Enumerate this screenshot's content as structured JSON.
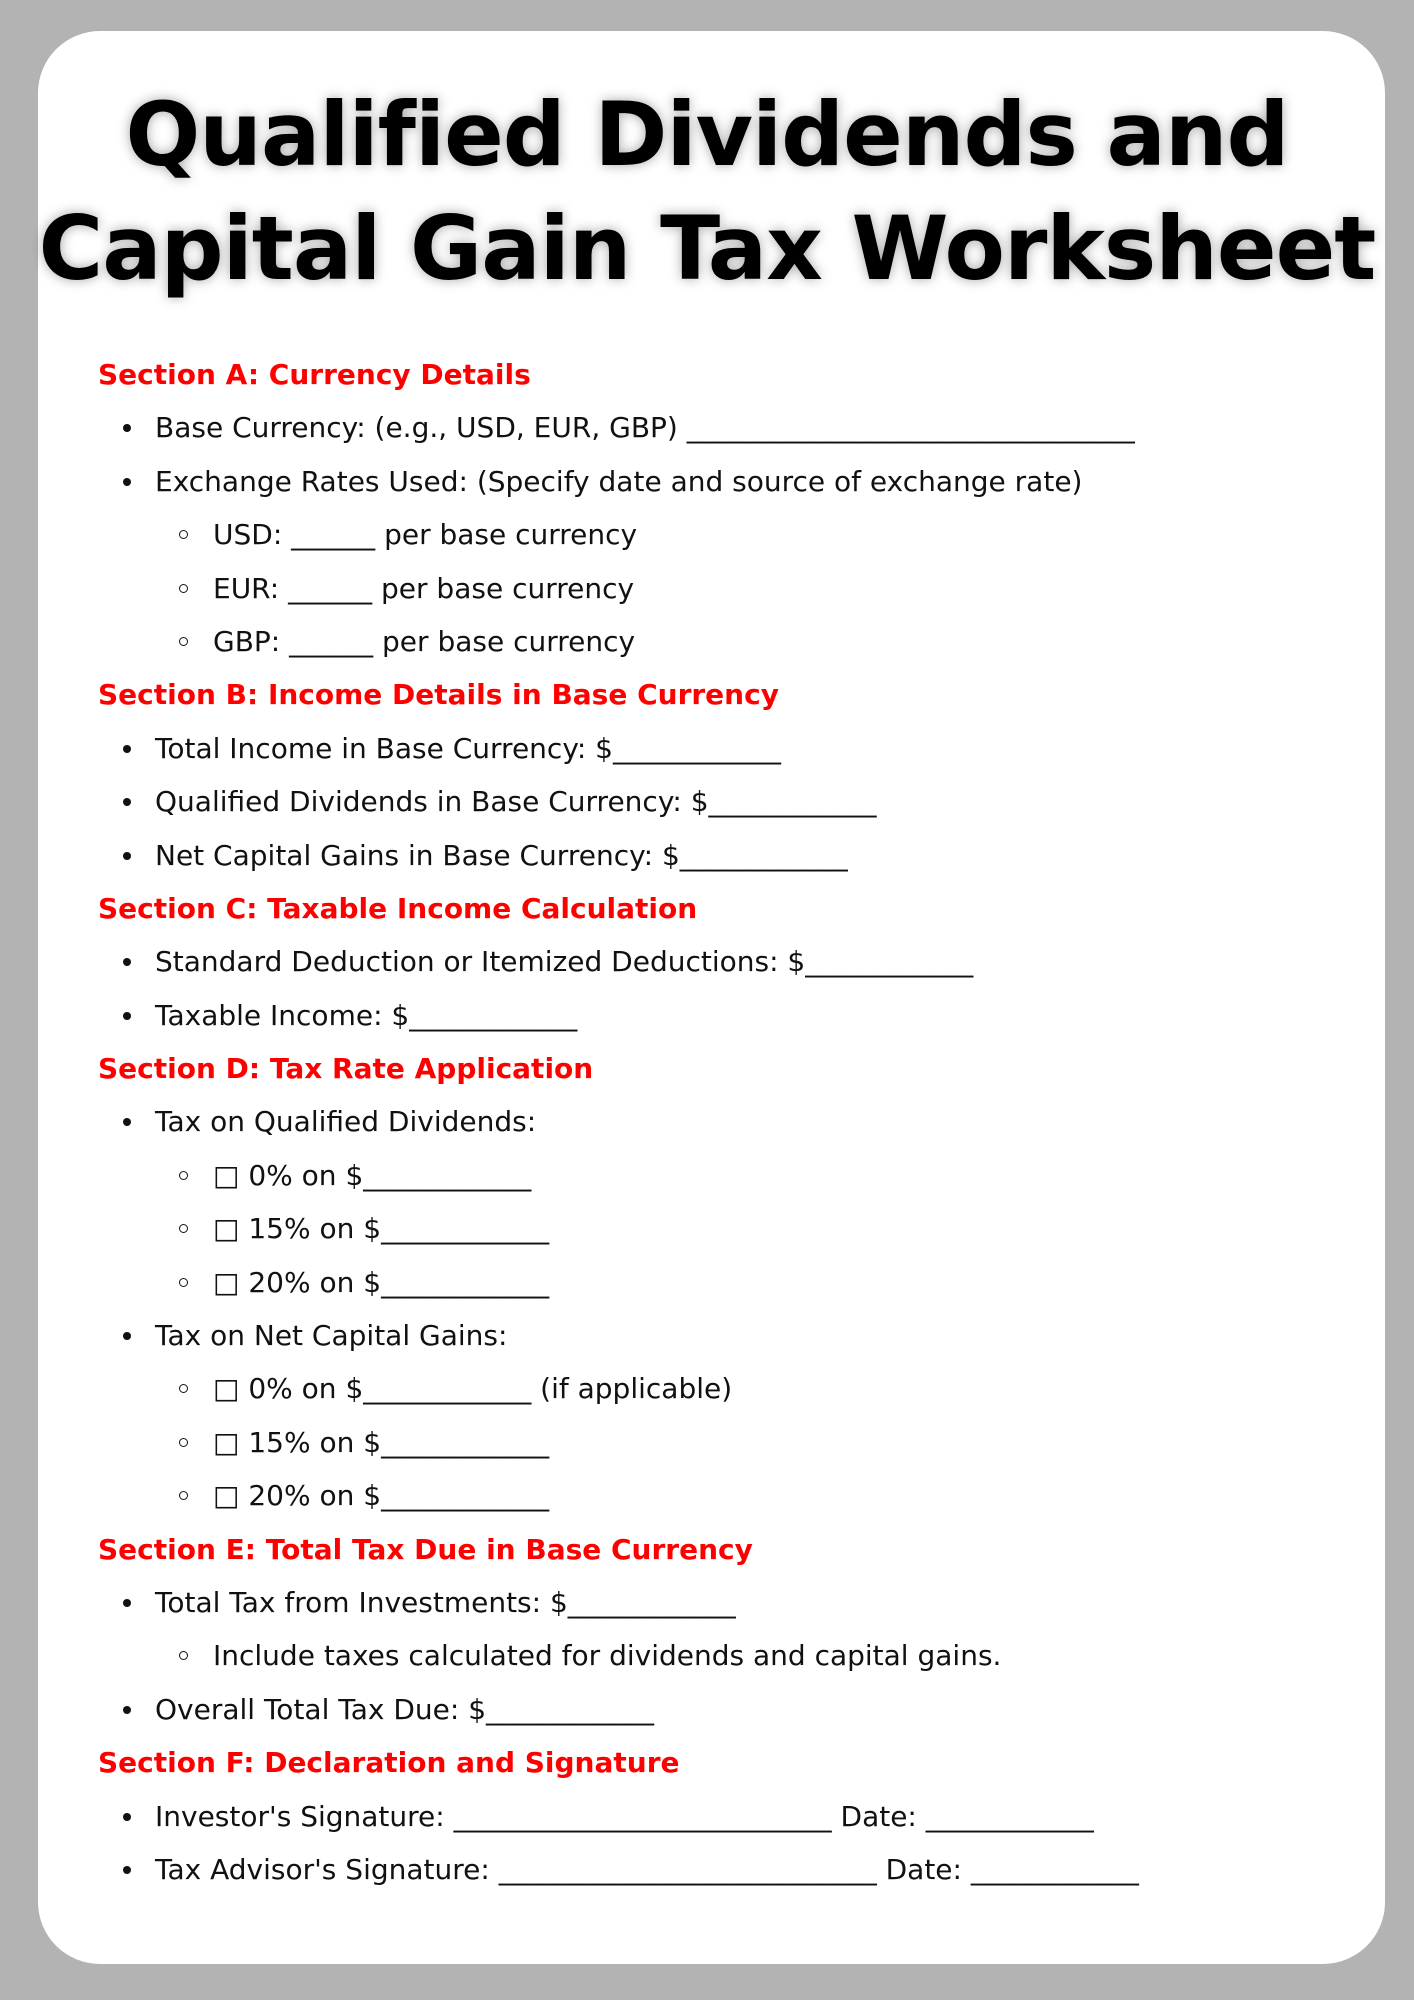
{
  "title_line1": "Qualified Dividends and",
  "title_line2": "Capital Gain Tax Worksheet",
  "colors": {
    "heading": "#ff0000",
    "background": "#b3b3b3",
    "card": "#ffffff"
  },
  "sections": [
    {
      "heading": "Section A: Currency Details",
      "items": [
        {
          "text": "Base Currency: (e.g., USD, EUR, GBP) ________________________________",
          "sub": []
        },
        {
          "text": "Exchange Rates Used: (Specify date and source of exchange rate)",
          "sub": [
            "USD: ______ per base currency",
            "EUR: ______ per base currency",
            "GBP: ______ per base currency"
          ]
        }
      ]
    },
    {
      "heading": "Section B: Income Details in Base Currency",
      "items": [
        {
          "text": "Total Income in Base Currency: $____________",
          "sub": []
        },
        {
          "text": "Qualified Dividends in Base Currency: $____________",
          "sub": []
        },
        {
          "text": "Net Capital Gains in Base Currency: $____________",
          "sub": []
        }
      ]
    },
    {
      "heading": "Section C: Taxable Income Calculation",
      "items": [
        {
          "text": "Standard Deduction or Itemized Deductions: $____________",
          "sub": []
        },
        {
          "text": "Taxable Income: $____________",
          "sub": []
        }
      ]
    },
    {
      "heading": "Section D: Tax Rate Application",
      "items": [
        {
          "text": "Tax on Qualified Dividends:",
          "sub": [
            "□ 0% on $____________",
            "□ 15% on $____________",
            "□ 20% on $____________"
          ]
        },
        {
          "text": "Tax on Net Capital Gains:",
          "sub": [
            "□ 0% on $____________ (if applicable)",
            "□ 15% on $____________",
            "□ 20% on $____________"
          ]
        }
      ]
    },
    {
      "heading": "Section E: Total Tax Due in Base Currency",
      "items": [
        {
          "text": "Total Tax from Investments: $____________",
          "sub": [
            "Include taxes calculated for dividends and capital gains."
          ]
        },
        {
          "text": "Overall Total Tax Due: $____________",
          "sub": []
        }
      ]
    },
    {
      "heading": "Section F: Declaration and Signature",
      "items": [
        {
          "text": "Investor's Signature: ___________________________ Date: ____________",
          "sub": []
        },
        {
          "text": "Tax Advisor's Signature: ___________________________ Date: ____________",
          "sub": []
        }
      ]
    }
  ]
}
